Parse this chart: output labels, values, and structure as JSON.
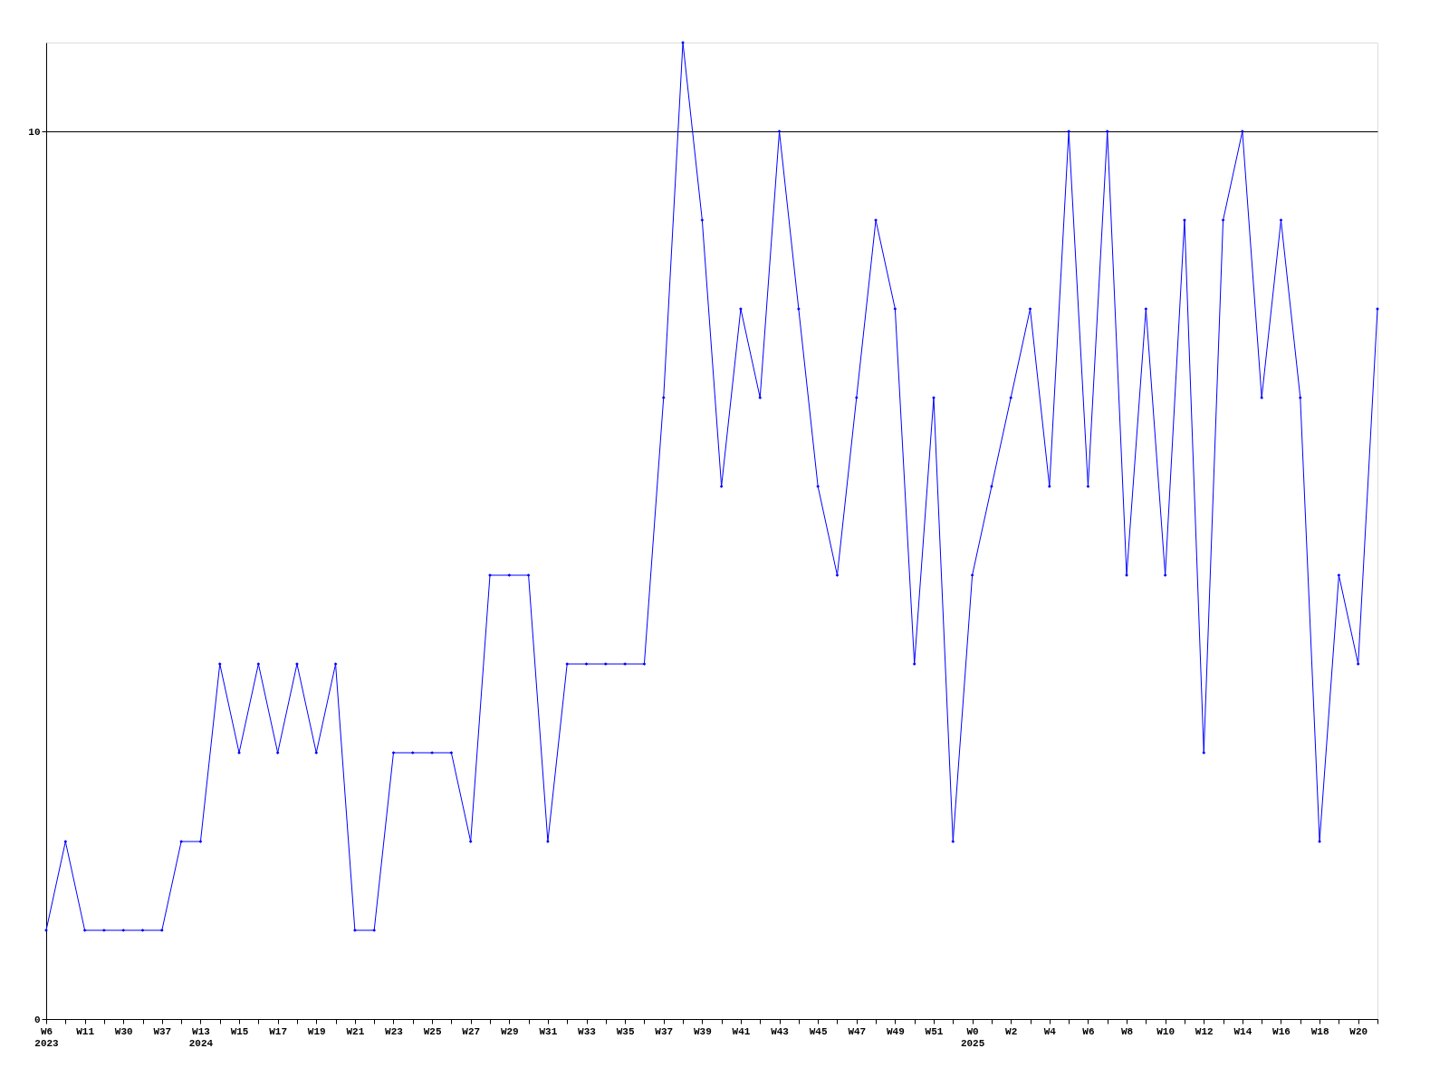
{
  "chart_data": {
    "type": "line",
    "categories": [
      "W6 2023",
      null,
      "W11",
      null,
      "W30",
      null,
      "W37",
      null,
      "W13 2024",
      null,
      "W15",
      null,
      "W17",
      null,
      "W19",
      null,
      "W21",
      null,
      "W23",
      null,
      "W25",
      null,
      "W27",
      null,
      "W29",
      null,
      "W31",
      null,
      "W33",
      null,
      "W35",
      null,
      "W37",
      null,
      "W39",
      null,
      "W41",
      null,
      "W43",
      null,
      "W45",
      null,
      "W47",
      null,
      "W49",
      null,
      "W51",
      null,
      "W0 2025",
      null,
      "W2",
      null,
      "W4",
      null,
      "W6",
      null,
      "W8",
      null,
      "W10",
      null,
      "W12",
      null,
      "W14",
      null,
      "W16",
      null,
      "W18",
      null,
      "W20",
      null
    ],
    "series": [
      {
        "color": "#0000ff",
        "values": [
          1,
          2,
          1,
          1,
          1,
          1,
          1,
          2,
          2,
          4,
          3,
          4,
          3,
          4,
          3,
          4,
          1,
          1,
          3,
          3,
          3,
          3,
          2,
          5,
          5,
          5,
          2,
          4,
          4,
          4,
          4,
          4,
          7,
          11,
          9,
          6,
          8,
          7,
          10,
          8,
          6,
          5,
          7,
          9,
          8,
          4,
          7,
          2,
          5,
          6,
          7,
          8,
          6,
          10,
          6,
          10,
          5,
          8,
          5,
          9,
          3,
          9,
          10,
          7,
          9,
          7,
          2,
          5,
          4,
          8
        ]
      }
    ],
    "ylim": [
      0,
      11
    ],
    "yticks": [
      0,
      10
    ],
    "grid": "y",
    "marker": "diamond",
    "line_style": "solid"
  }
}
